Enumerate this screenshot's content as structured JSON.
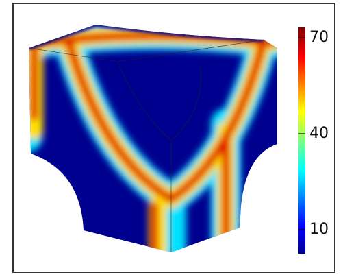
{
  "chart_data": {
    "type": "surface",
    "zlim": [
      2.5,
      73.2
    ],
    "zticks": [
      10,
      40,
      70
    ]
  }
}
